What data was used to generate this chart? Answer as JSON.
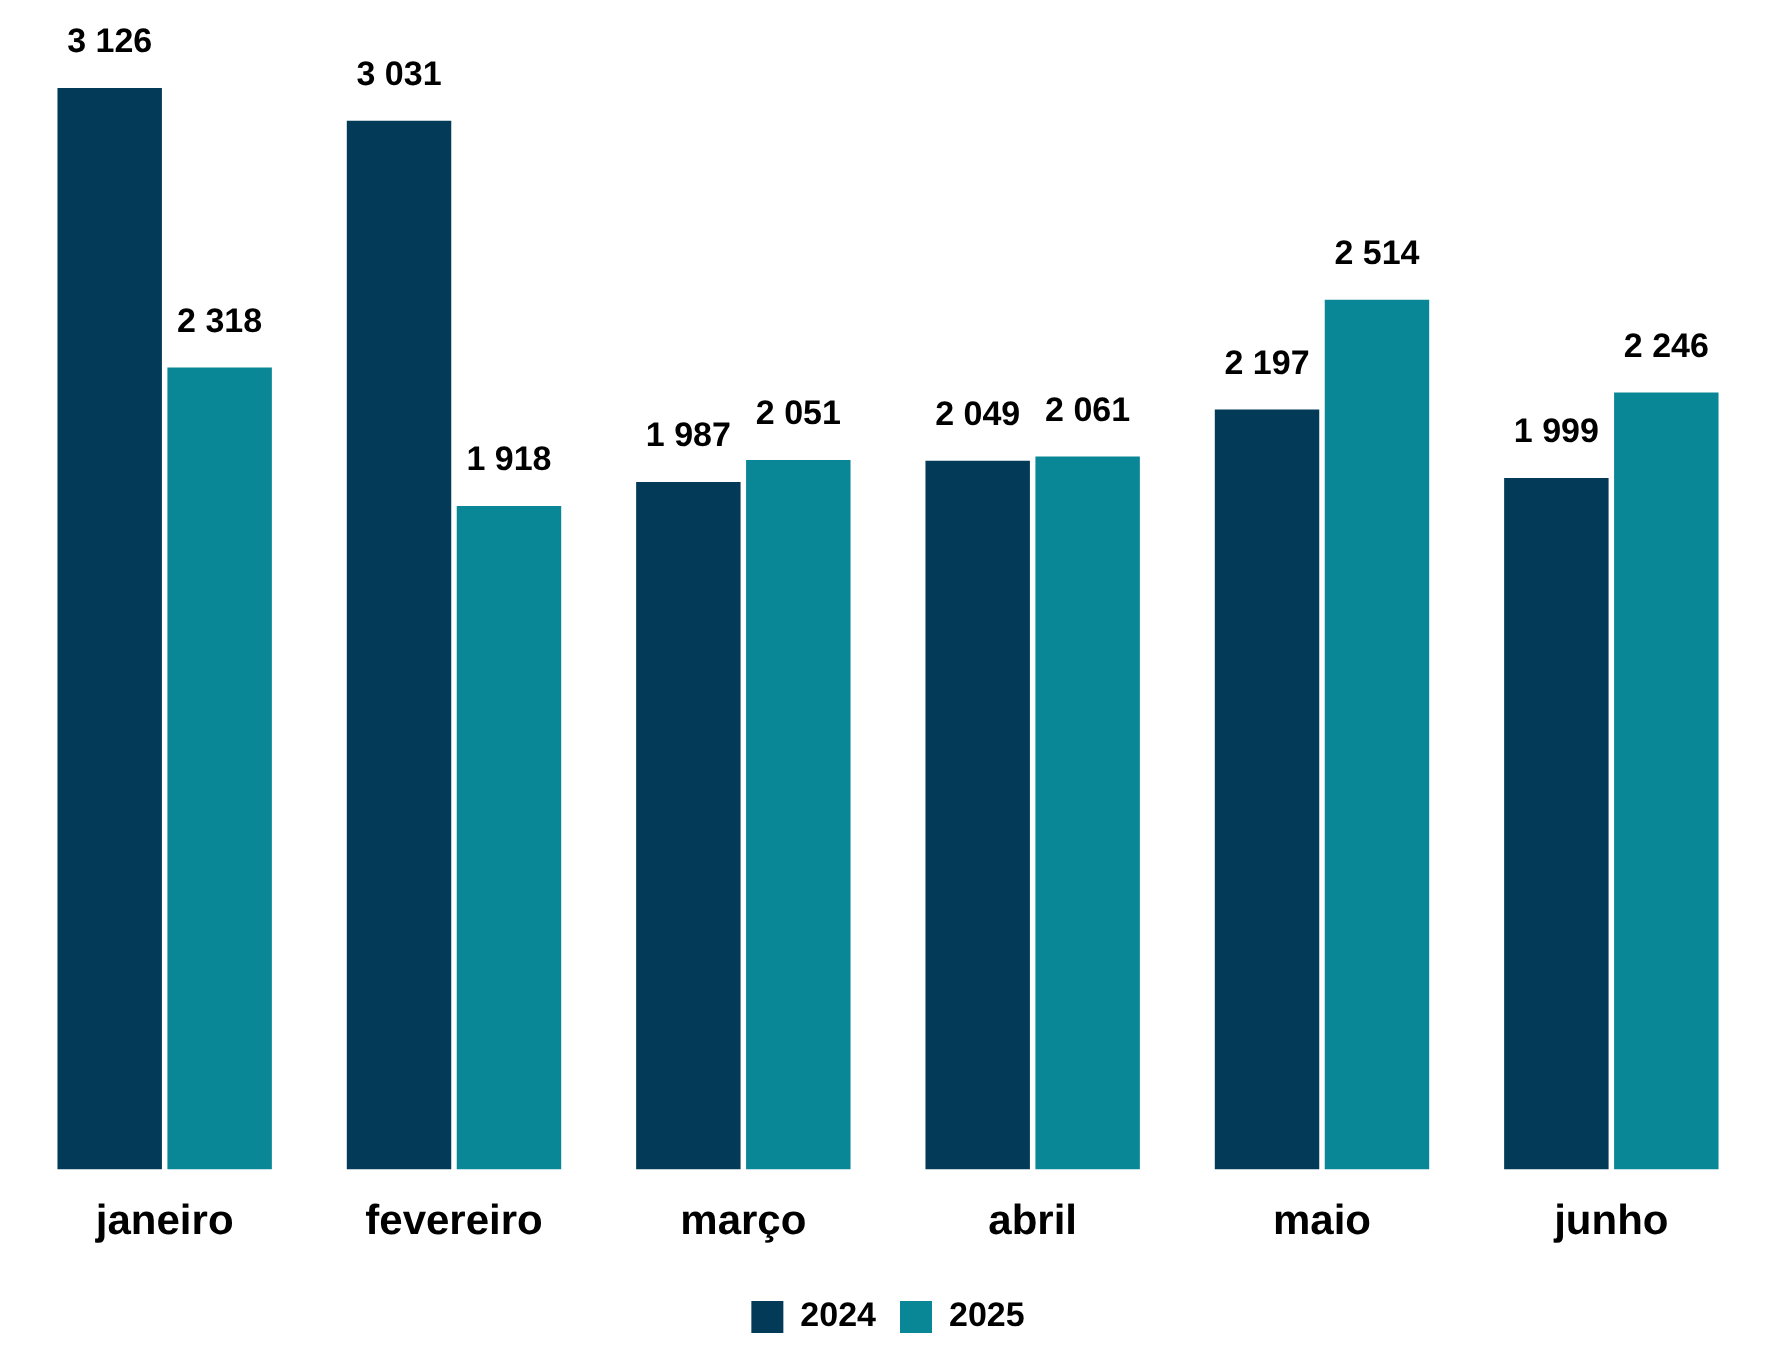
{
  "chart_data": {
    "type": "bar",
    "categories": [
      "janeiro",
      "fevereiro",
      "março",
      "abril",
      "maio",
      "junho"
    ],
    "series": [
      {
        "name": "2024",
        "color": "#023a58",
        "values": [
          3126,
          3031,
          1987,
          2049,
          2197,
          1999
        ]
      },
      {
        "name": "2025",
        "color": "#0a8796",
        "values": [
          2318,
          1918,
          2051,
          2061,
          2514,
          2246
        ]
      }
    ],
    "data_labels": true,
    "legend": "bottom",
    "grid": false
  }
}
